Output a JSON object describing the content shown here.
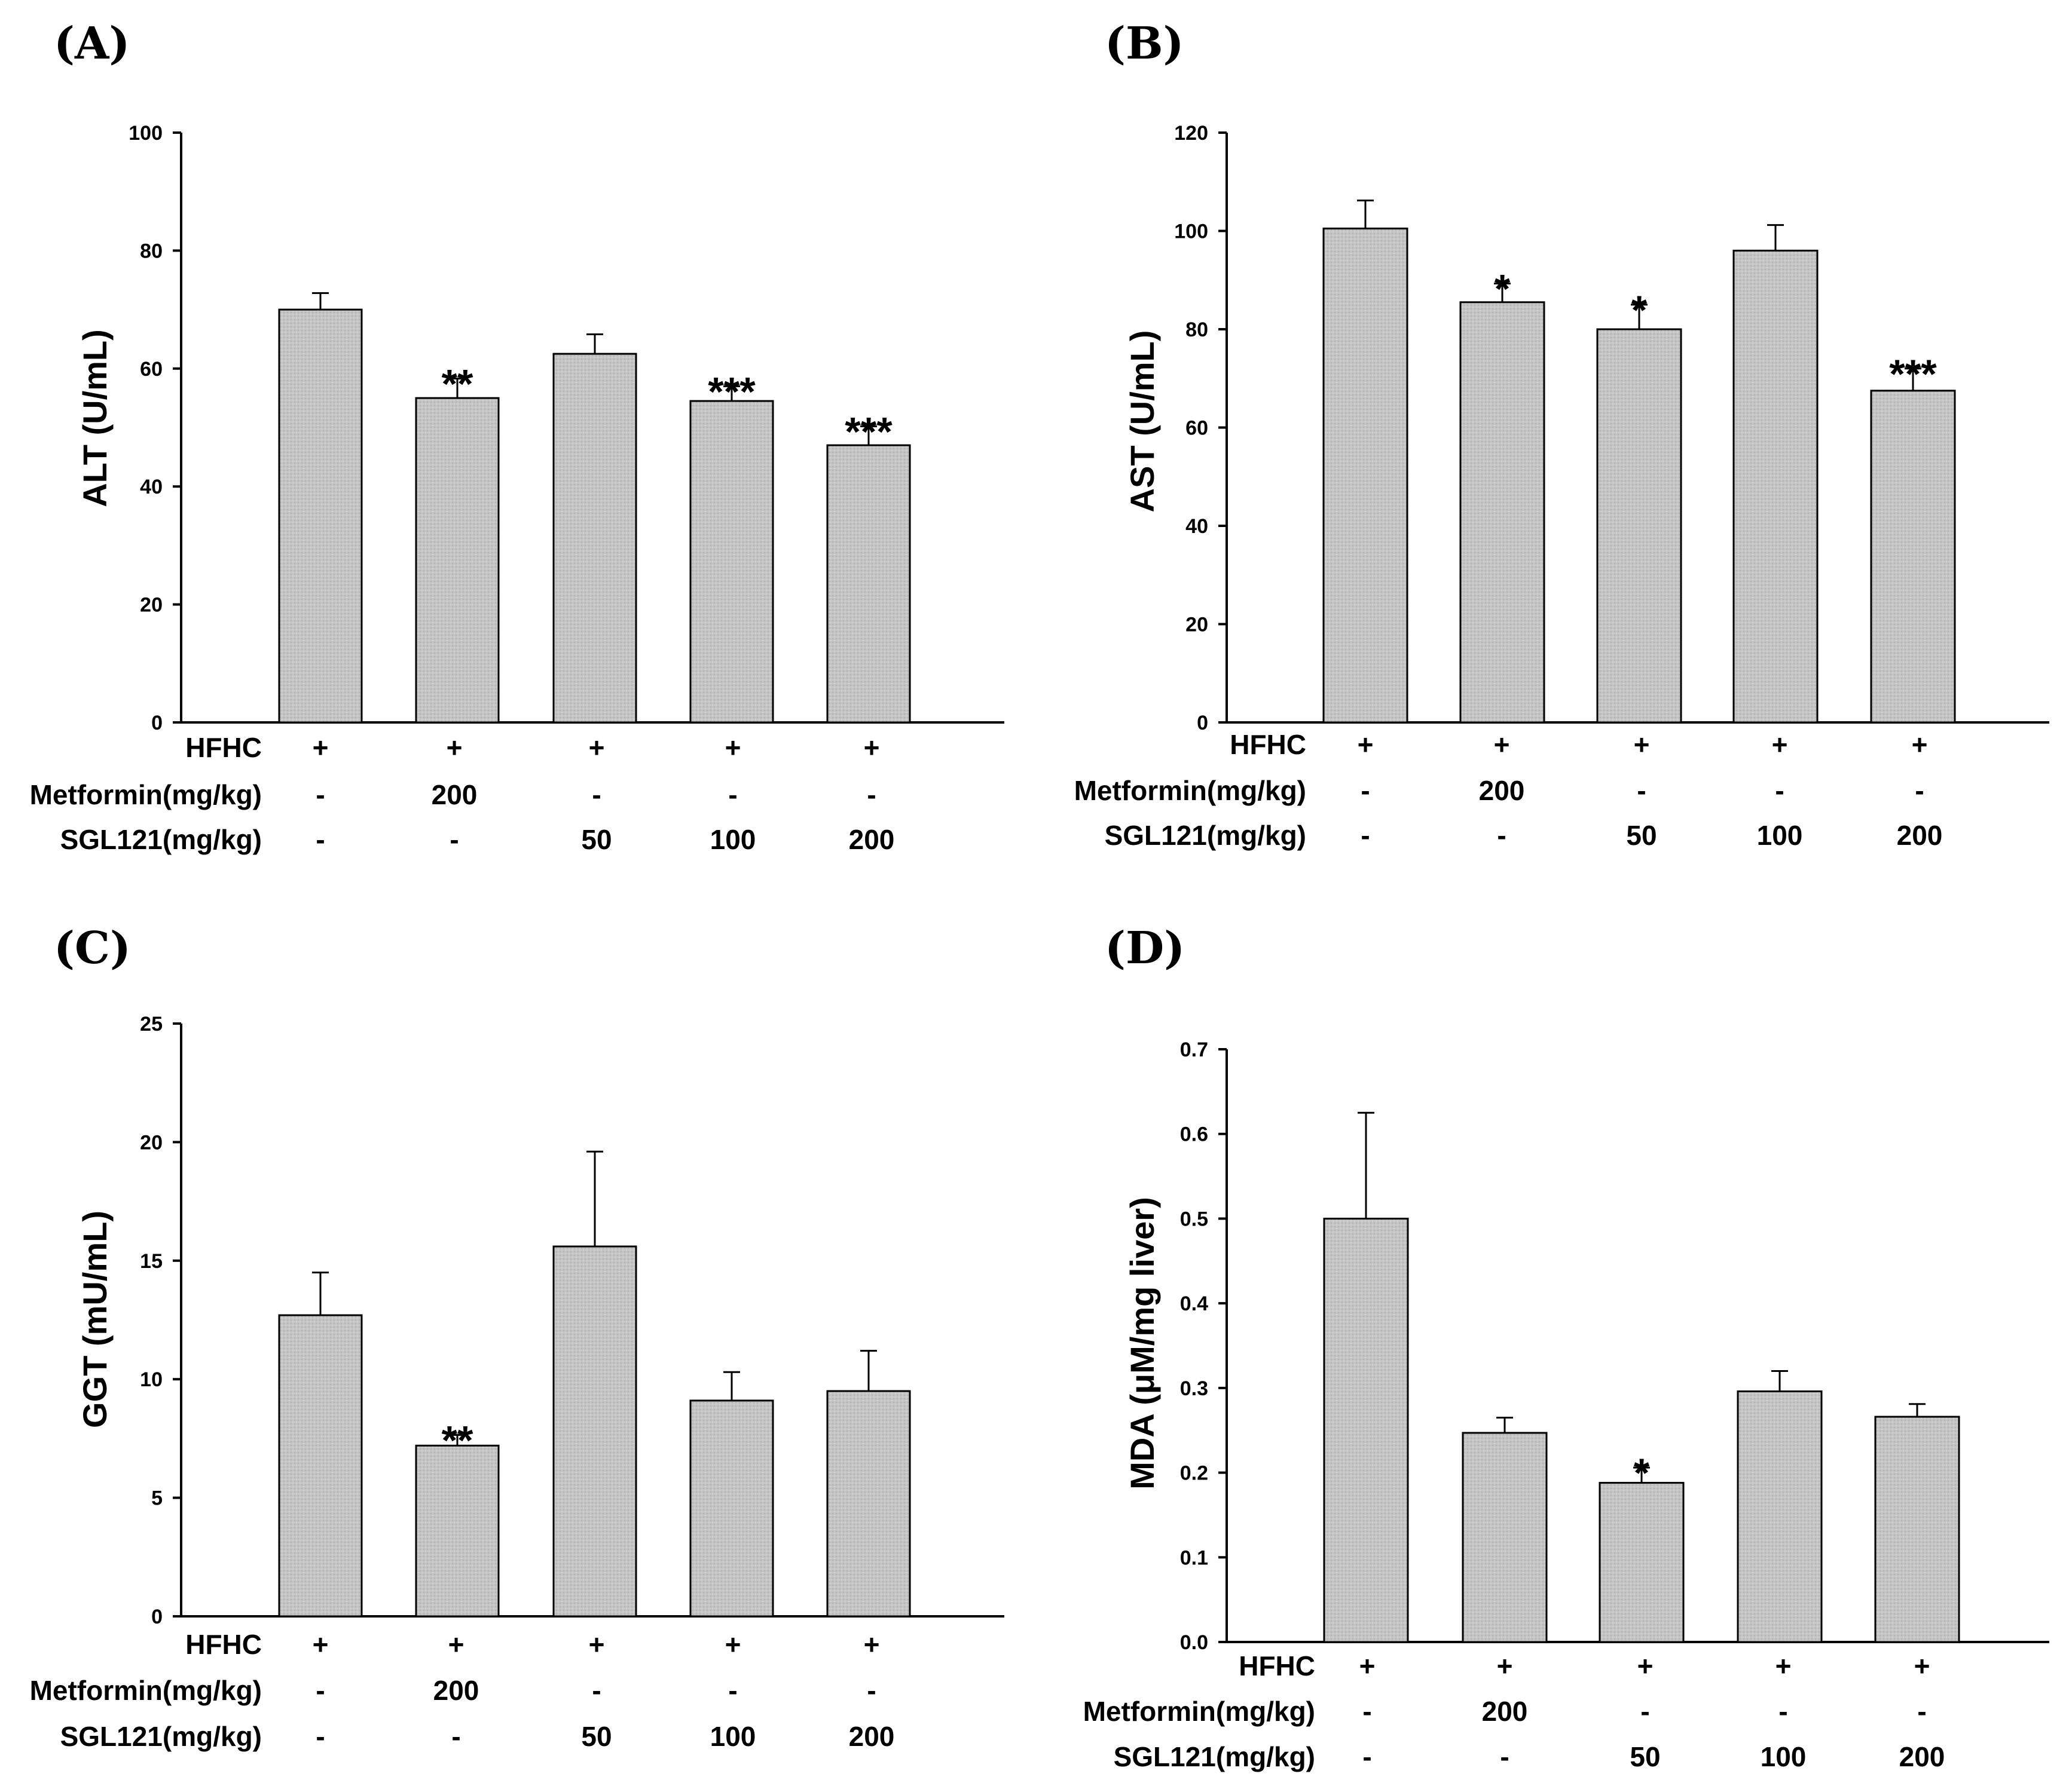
{
  "chart_data": [
    {
      "type": "bar",
      "panel": "(A)",
      "ylabel": "ALT (U/mL)",
      "ylim": [
        0,
        100
      ],
      "yticks": [
        "0",
        "20",
        "40",
        "60",
        "80",
        "100"
      ],
      "values": [
        70,
        55,
        62.5,
        54.5,
        47
      ],
      "errors": [
        2.8,
        3.3,
        3.3,
        2.5,
        3.2
      ],
      "significance": [
        "",
        "**",
        "",
        "***",
        "***"
      ],
      "rows": [
        {
          "label": "HFHC",
          "cells": [
            "+",
            "+",
            "+",
            "+",
            "+"
          ]
        },
        {
          "label": "Metformin(mg/kg)",
          "cells": [
            "-",
            "200",
            "-",
            "-",
            "-"
          ]
        },
        {
          "label": "SGL121(mg/kg)",
          "cells": [
            "-",
            "-",
            "50",
            "100",
            "200"
          ]
        }
      ]
    },
    {
      "type": "bar",
      "panel": "(B)",
      "ylabel": "AST (U/mL)",
      "ylim": [
        0,
        120
      ],
      "yticks": [
        "0",
        "20",
        "40",
        "60",
        "80",
        "100",
        "120"
      ],
      "values": [
        100.5,
        85.5,
        80,
        96,
        67.5
      ],
      "errors": [
        5.7,
        3.8,
        5,
        5.2,
        4.5
      ],
      "significance": [
        "",
        "*",
        "*",
        "",
        "***"
      ],
      "rows": [
        {
          "label": "HFHC",
          "cells": [
            "+",
            "+",
            "+",
            "+",
            "+"
          ]
        },
        {
          "label": "Metformin(mg/kg)",
          "cells": [
            "-",
            "200",
            "-",
            "-",
            "-"
          ]
        },
        {
          "label": "SGL121(mg/kg)",
          "cells": [
            "-",
            "-",
            "50",
            "100",
            "200"
          ]
        }
      ]
    },
    {
      "type": "bar",
      "panel": "(C)",
      "ylabel": "GGT (mU/mL)",
      "ylim": [
        0,
        25
      ],
      "yticks": [
        "0",
        "5",
        "10",
        "15",
        "20",
        "25"
      ],
      "values": [
        12.7,
        7.2,
        15.6,
        9.1,
        9.5
      ],
      "errors": [
        1.8,
        0.45,
        4,
        1.2,
        1.7
      ],
      "significance": [
        "",
        "**",
        "",
        "",
        ""
      ],
      "rows": [
        {
          "label": "HFHC",
          "cells": [
            "+",
            "+",
            "+",
            "+",
            "+"
          ]
        },
        {
          "label": "Metformin(mg/kg)",
          "cells": [
            "-",
            "200",
            "-",
            "-",
            "-"
          ]
        },
        {
          "label": "SGL121(mg/kg)",
          "cells": [
            "-",
            "-",
            "50",
            "100",
            "200"
          ]
        }
      ]
    },
    {
      "type": "bar",
      "panel": "(D)",
      "ylabel": "MDA (μM/mg liver)",
      "ylim": [
        0,
        0.7
      ],
      "yticks": [
        "0.0",
        "0.1",
        "0.2",
        "0.3",
        "0.4",
        "0.5",
        "0.6",
        "0.7"
      ],
      "values": [
        0.5,
        0.247,
        0.188,
        0.296,
        0.266
      ],
      "errors": [
        0.125,
        0.018,
        0.018,
        0.024,
        0.015
      ],
      "significance": [
        "",
        "",
        "*",
        "",
        ""
      ],
      "rows": [
        {
          "label": "HFHC",
          "cells": [
            "+",
            "+",
            "+",
            "+",
            "+"
          ]
        },
        {
          "label": "Metformin(mg/kg)",
          "cells": [
            "-",
            "200",
            "-",
            "-",
            "-"
          ]
        },
        {
          "label": "SGL121(mg/kg)",
          "cells": [
            "-",
            "-",
            "50",
            "100",
            "200"
          ]
        }
      ]
    }
  ]
}
